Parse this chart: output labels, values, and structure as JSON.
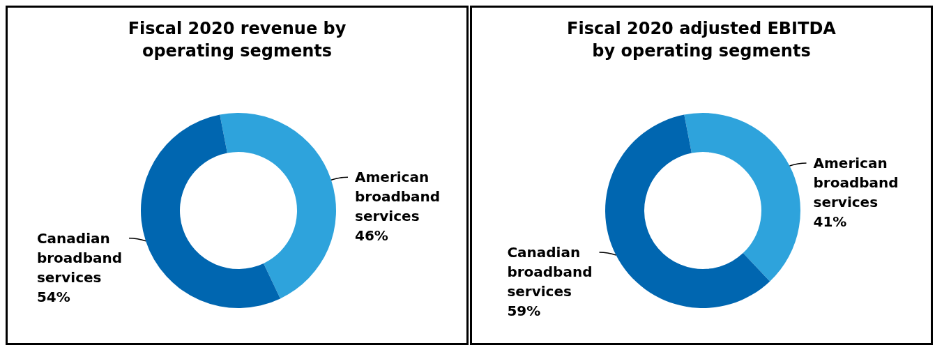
{
  "chart_data": [
    {
      "type": "donut",
      "title": "Fiscal 2020 revenue by operating segments",
      "categories": [
        "American broadband services",
        "Canadian broadband services"
      ],
      "values": [
        46,
        54
      ],
      "value_labels": [
        "46%",
        "54%"
      ],
      "colors": [
        "#2ea3dc",
        "#0066b0"
      ]
    },
    {
      "type": "donut",
      "title": "Fiscal 2020 adjusted EBITDA by operating segments",
      "categories": [
        "American broadband services",
        "Canadian broadband services"
      ],
      "values": [
        41,
        59
      ],
      "value_labels": [
        "41%",
        "59%"
      ],
      "colors": [
        "#2ea3dc",
        "#0066b0"
      ]
    }
  ]
}
